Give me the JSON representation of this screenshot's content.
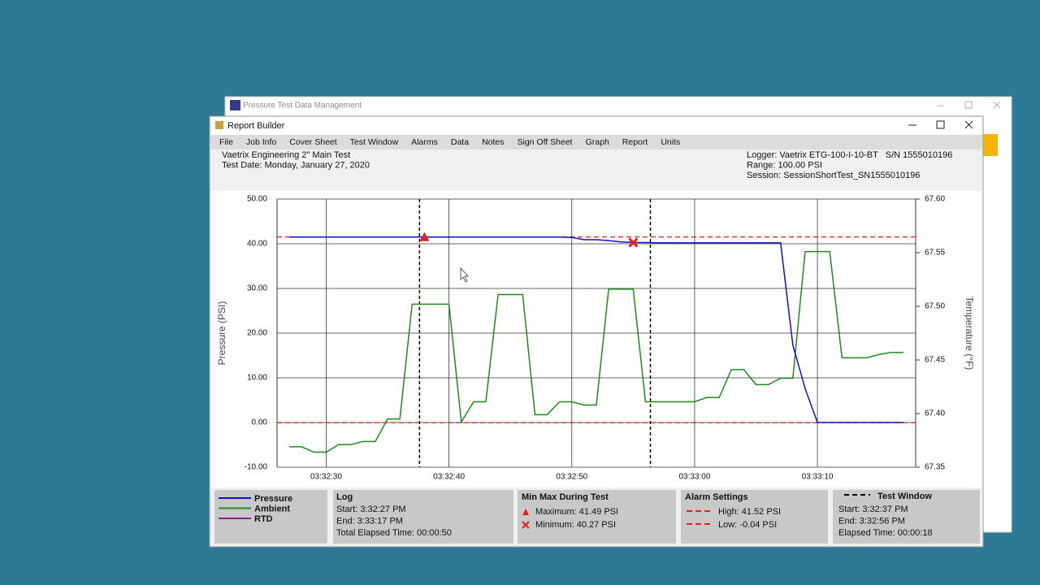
{
  "background_window": {
    "title": "Pressure Test Data Management"
  },
  "window": {
    "title": "Report Builder"
  },
  "menu": [
    "File",
    "Job Info",
    "Cover Sheet",
    "Test Window",
    "Alarms",
    "Data",
    "Notes",
    "Sign Off Sheet",
    "Graph",
    "Report",
    "Units"
  ],
  "header": {
    "left": [
      "Vaetrix Engineering 2\" Main Test",
      "Test Date: Monday, January 27, 2020"
    ],
    "right": [
      "Logger: Vaetrix ETG-100-I-10-BT   S/N 1555010196",
      "Range: 100.00 PSI",
      "Session: SessionShortTest_SN1555010196"
    ]
  },
  "chart_data": {
    "type": "line",
    "y_label": "Pressure (PSI)",
    "y2_label": "Temperature (°F)",
    "x": [
      27,
      28,
      29,
      30,
      31,
      32,
      33,
      34,
      35,
      36,
      37,
      38,
      39,
      40,
      41,
      42,
      43,
      44,
      45,
      46,
      47,
      48,
      49,
      50,
      51,
      52,
      53,
      54,
      55,
      56,
      57,
      58,
      59,
      60,
      61,
      62,
      63,
      64,
      65,
      66,
      67,
      68,
      69,
      70,
      71,
      72,
      73,
      74,
      75,
      76,
      77
    ],
    "xlim": [
      26,
      78
    ],
    "xticks": [
      {
        "value": 30,
        "label": "03:32:30"
      },
      {
        "value": 40,
        "label": "03:32:40"
      },
      {
        "value": 50,
        "label": "03:32:50"
      },
      {
        "value": 60,
        "label": "03:33:00"
      },
      {
        "value": 70,
        "label": "03:33:10"
      }
    ],
    "ylim": [
      -10,
      50
    ],
    "yticks": [
      {
        "value": 50,
        "label": "50.00"
      },
      {
        "value": 40,
        "label": "40.00"
      },
      {
        "value": 30,
        "label": "30.00"
      },
      {
        "value": 20,
        "label": "20.00"
      },
      {
        "value": 10,
        "label": "10.00"
      },
      {
        "value": 0,
        "label": "0.00"
      },
      {
        "value": -10,
        "label": "-10.00"
      }
    ],
    "y2lim": [
      67.35,
      67.6
    ],
    "y2ticks": [
      {
        "value": 67.6,
        "label": "67.60"
      },
      {
        "value": 67.55,
        "label": "67.55"
      },
      {
        "value": 67.5,
        "label": "67.50"
      },
      {
        "value": 67.45,
        "label": "67.45"
      },
      {
        "value": 67.4,
        "label": "67.40"
      },
      {
        "value": 67.35,
        "label": "67.35"
      }
    ],
    "grid": true,
    "series": [
      {
        "name": "Pressure",
        "color": "#1010c8",
        "values": [
          41.5,
          41.5,
          41.5,
          41.5,
          41.5,
          41.5,
          41.5,
          41.5,
          41.5,
          41.5,
          41.5,
          41.5,
          41.5,
          41.5,
          41.5,
          41.5,
          41.5,
          41.5,
          41.5,
          41.5,
          41.5,
          41.5,
          41.5,
          41.4,
          40.9,
          40.9,
          40.7,
          40.4,
          40.3,
          40.27,
          40.2,
          40.2,
          40.2,
          40.2,
          40.2,
          40.2,
          40.2,
          40.2,
          40.2,
          40.2,
          40.2,
          17.3,
          7.6,
          0,
          0,
          0,
          0,
          0,
          0,
          0,
          0
        ]
      },
      {
        "name": "Ambient",
        "color": "#1e8a1e",
        "axis": "y2",
        "values": [
          67.369,
          67.369,
          67.364,
          67.364,
          67.371,
          67.371,
          67.374,
          67.374,
          67.395,
          67.395,
          67.502,
          67.502,
          67.502,
          67.502,
          67.392,
          67.411,
          67.411,
          67.511,
          67.511,
          67.511,
          67.399,
          67.399,
          67.411,
          67.411,
          67.408,
          67.408,
          67.516,
          67.516,
          67.516,
          67.411,
          67.411,
          67.411,
          67.411,
          67.411,
          67.415,
          67.415,
          67.441,
          67.441,
          67.427,
          67.427,
          67.433,
          67.433,
          67.551,
          67.551,
          67.551,
          67.452,
          67.452,
          67.452,
          67.455,
          67.457,
          67.457
        ]
      },
      {
        "name": "RTD",
        "color": "#8b1a8b",
        "values": [
          null,
          null,
          null,
          null,
          null,
          null,
          null,
          null,
          null,
          null,
          null,
          null,
          null,
          null,
          null,
          null,
          null,
          null,
          null,
          null,
          null,
          null,
          null,
          null,
          null,
          null,
          null,
          null,
          null,
          null,
          null,
          null,
          null,
          null,
          null,
          null,
          null,
          null,
          null,
          null,
          null,
          null,
          null,
          null,
          null,
          null,
          null,
          null,
          null,
          null,
          null
        ]
      }
    ],
    "alarm_color": "#e02020",
    "alarm_high": 41.52,
    "alarm_low": -0.04,
    "max_marker": {
      "x": 38,
      "y": 41.49
    },
    "min_marker": {
      "x": 55,
      "y": 40.27
    },
    "test_window": [
      37.6,
      56.4
    ]
  },
  "panels": {
    "log": {
      "title": "Log",
      "lines": [
        "Start: 3:32:27 PM",
        "End: 3:33:17 PM",
        "Total Elapsed Time: 00:00:50"
      ]
    },
    "minmax": {
      "title": "Min Max During Test",
      "lines": [
        "Maximum: 41.49 PSI",
        "Minimum: 40.27 PSI"
      ]
    },
    "alarms": {
      "title": "Alarm Settings",
      "lines": [
        "High: 41.52 PSI",
        "Low: -0.04 PSI"
      ]
    },
    "test_window": {
      "title": "Test Window",
      "lines": [
        "Start: 3:32:37 PM",
        "End: 3:32:56 PM",
        "Elapsed Time: 00:00:18"
      ]
    }
  }
}
